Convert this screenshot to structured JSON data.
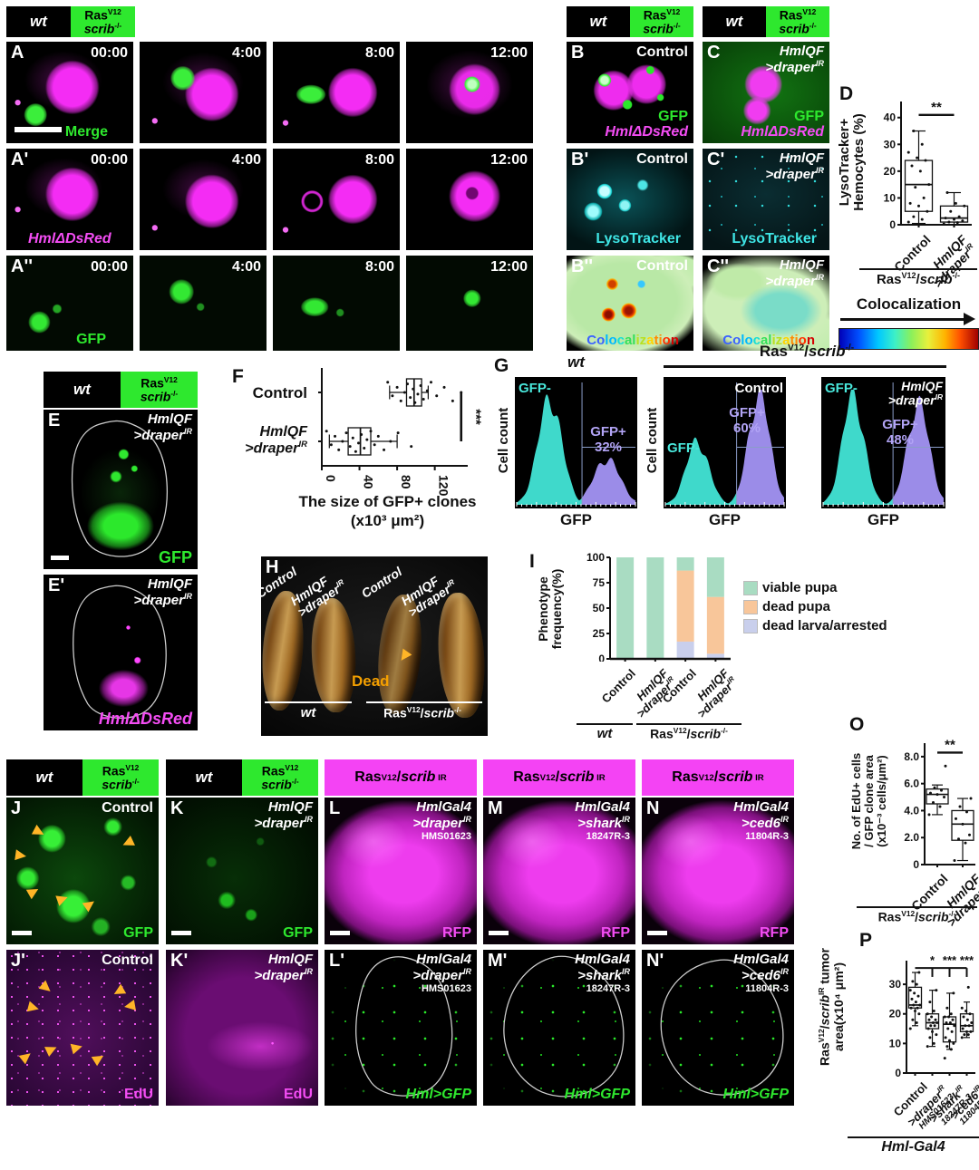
{
  "figure": {
    "timestamps": [
      "00:00",
      "4:00",
      "8:00",
      "12:00"
    ],
    "panel_letters": {
      "a": "A",
      "a1": "A'",
      "a2": "A''",
      "b": "B",
      "b1": "B'",
      "b2": "B''",
      "c": "C",
      "c1": "C'",
      "c2": "C''",
      "d": "D",
      "e": "E",
      "e1": "E'",
      "f": "F",
      "g": "G",
      "h": "H",
      "i": "I",
      "j": "J",
      "j1": "J'",
      "k": "K",
      "k1": "K'",
      "l": "L",
      "l1": "L'",
      "m": "M",
      "m1": "M'",
      "n": "N",
      "n1": "N'",
      "o": "O",
      "p": "P"
    },
    "labels": {
      "control": "Control",
      "wt": "wt",
      "dead": "Dead",
      "merge": "Merge",
      "gfp": "GFP",
      "rfp": "RFP",
      "edu": "EdU",
      "dsred": "HmlΔDsRed",
      "lysotracker": "LysoTracker",
      "coloc": "Colocalization",
      "hml_gfp": "Hml>GFP",
      "tumor_suffix": "tumor",
      "hml_gal4": "Hml-Gal4"
    },
    "genotype_header": {
      "wt": "wt",
      "ras": "Ras",
      "ras_sup": "V12",
      "scrib": "scrib",
      "scrib_sup": "-/-"
    },
    "ras_scrib_ko": {
      "ras": "Ras",
      "ras_sup": "V12",
      "sep": "/",
      "scrib": "scrib",
      "scrib_sup": "-/-"
    },
    "ras_scrib_ir": {
      "ras": "Ras",
      "ras_sup": "V12",
      "sep": "/",
      "scrib": "scrib",
      "scrib_sup": "IR"
    },
    "hmlqf": {
      "l1": "HmlQF",
      "l2": ">draper",
      "sup": "IR"
    },
    "hmlgal4_draper": {
      "l1": "HmlGal4",
      "l2": ">draper",
      "sup": "IR",
      "code": "HMS01623"
    },
    "hmlgal4_shark": {
      "l1": "HmlGal4",
      "l2": ">shark",
      "sup": "IR",
      "code": "18247R-3"
    },
    "hmlgal4_ced6": {
      "l1": "HmlGal4",
      "l2": ">ced6",
      "sup": "IR",
      "code": "11804R-3"
    }
  },
  "chart_data": [
    {
      "id": "D",
      "type": "box",
      "orientation": "vertical",
      "ylabel": "LysoTracker+ Hemocytes (%)",
      "ylabel_lines": [
        "LysoTracker+",
        "Hemocytes (%)"
      ],
      "ylim": [
        0,
        46
      ],
      "yticks": [
        0,
        10,
        20,
        30,
        40
      ],
      "categories": [
        "Control",
        "HmlQF >draper IR"
      ],
      "group_label": "RasV12/scrib-/-",
      "m": {
        "l": 34,
        "r": 6,
        "t": 12,
        "b": 4
      },
      "bw": 30,
      "boxes": [
        {
          "lo": 0.5,
          "q1": 5,
          "med": 15,
          "q3": 24,
          "hi": 35
        },
        {
          "lo": 0,
          "q1": 1,
          "med": 2.5,
          "q3": 7,
          "hi": 12
        }
      ],
      "points": [
        [
          1,
          2,
          3,
          5,
          7,
          8,
          10,
          14,
          15,
          20,
          22,
          24,
          25,
          27,
          30,
          35
        ],
        [
          0.3,
          0.8,
          1,
          1.5,
          2,
          2.5,
          3,
          5,
          7,
          8,
          12
        ]
      ],
      "sig": {
        "label": "**",
        "a": 0,
        "b": 1,
        "y": 41
      }
    },
    {
      "id": "F",
      "type": "box",
      "orientation": "horizontal",
      "xlabel": "The size of GFP+ clones (x10³ μm²)",
      "xlabel_lines": [
        "The size of GFP+ clones",
        "(x10³ μm²)"
      ],
      "xlim": [
        0,
        155
      ],
      "xticks": [
        0,
        40,
        80,
        120
      ],
      "categories": [
        "Control",
        "HmlQF >draper IR"
      ],
      "m": {
        "l": 10,
        "r": 34,
        "t": 8,
        "b": 52
      },
      "bw": 30,
      "boxes": [
        {
          "lo": 72,
          "q1": 90,
          "med": 98,
          "q3": 106,
          "hi": 113
        },
        {
          "lo": 8,
          "q1": 28,
          "med": 41,
          "q3": 52,
          "hi": 80
        }
      ],
      "points": [
        [
          70,
          75,
          80,
          84,
          88,
          91,
          94,
          97,
          99,
          102,
          105,
          108,
          112,
          116,
          122,
          130,
          139,
          148
        ],
        [
          5,
          10,
          14,
          18,
          22,
          26,
          30,
          33,
          36,
          39,
          42,
          45,
          48,
          52,
          56,
          60,
          66,
          73,
          81,
          95
        ]
      ],
      "sig": {
        "label": "***",
        "x": 148
      }
    },
    {
      "id": "G",
      "type": "histogram",
      "xlabel": "GFP",
      "ylabel": "Cell count",
      "group_title": "RasV12/scrib-/-",
      "colors": {
        "neg": "#3fd9cb",
        "pos": "#9b8ce8"
      },
      "plots": [
        {
          "svg": "G0",
          "title": "wt",
          "neg_label": "GFP-",
          "pos_label": "GFP+",
          "pos_pct": "32%",
          "neg_peak": {
            "c": 0.28,
            "s": 0.1,
            "h": 0.92
          },
          "pos_peak": {
            "c": 0.76,
            "s": 0.11,
            "h": 0.4
          },
          "divider": 0.55,
          "gate": 0.5
        },
        {
          "svg": "G1",
          "title": "Control",
          "neg_label": "GFP-",
          "pos_label": "GFP+",
          "pos_pct": "60%",
          "neg_peak": {
            "c": 0.27,
            "s": 0.095,
            "h": 0.55
          },
          "pos_peak": {
            "c": 0.79,
            "s": 0.09,
            "h": 0.96
          },
          "divider": 0.6,
          "gate": 0.5
        },
        {
          "svg": "G2",
          "title": "HmlQF >draper IR",
          "neg_label": "GFP-",
          "pos_label": "GFP+",
          "pos_pct": "48%",
          "neg_peak": {
            "c": 0.25,
            "s": 0.09,
            "h": 0.95
          },
          "pos_peak": {
            "c": 0.79,
            "s": 0.09,
            "h": 0.88
          },
          "divider": 0.58,
          "gate": 0.5
        }
      ]
    },
    {
      "id": "I",
      "type": "bar",
      "stacked": true,
      "ylabel": "Phenotype frequency(%)",
      "ylabel_lines": [
        "Phenotype",
        "frequency(%)"
      ],
      "ylim": [
        0,
        100
      ],
      "yticks": [
        0,
        25,
        50,
        75,
        100
      ],
      "categories": [
        "Control",
        "HmlQF >draper IR",
        "Control",
        "HmlQF >draper IR"
      ],
      "groups": [
        {
          "label": "wt",
          "span": [
            0,
            1
          ]
        },
        {
          "label": "RasV12/scrib-/-",
          "span": [
            2,
            3
          ]
        }
      ],
      "m": {
        "l": 30,
        "r": 4,
        "t": 5,
        "b": 3
      },
      "bw": 19,
      "series": [
        {
          "name": "viable pupa",
          "color": "#a9dcc2",
          "values": [
            100,
            100,
            13,
            39
          ]
        },
        {
          "name": "dead pupa",
          "color": "#f8c69a",
          "values": [
            0,
            0,
            70,
            56
          ]
        },
        {
          "name": "dead larva/arrested",
          "color": "#c9cfec",
          "values": [
            0,
            0,
            17,
            5
          ]
        }
      ],
      "legend_position": "right"
    },
    {
      "id": "O",
      "type": "box",
      "orientation": "vertical",
      "ylabel": "No. of EdU+ cells / GFP clone area (x10⁻³ cells/μm²)",
      "ylabel_lines": [
        "No. of EdU+ cells",
        "/ GFP clone area",
        "(x10⁻³ cells/μm²)"
      ],
      "ylim": [
        0,
        9
      ],
      "yticks": [
        0,
        2,
        4,
        6,
        8
      ],
      "ytick_labels": [
        "0",
        "2.0",
        "4.0",
        "6.0",
        "8.0"
      ],
      "categories": [
        "Control",
        "HmlQF >draper IR"
      ],
      "group_label": "RasV12/scrib-/-",
      "m": {
        "l": 34,
        "r": 4,
        "t": 14,
        "b": 4
      },
      "bw": 24,
      "boxes": [
        {
          "lo": 3.7,
          "q1": 4.5,
          "med": 5.2,
          "q3": 5.6,
          "hi": 5.9
        },
        {
          "lo": 0.3,
          "q1": 1.8,
          "med": 3.0,
          "q3": 4.0,
          "hi": 4.9
        }
      ],
      "points": [
        [
          3.7,
          4.3,
          4.6,
          5.0,
          5.2,
          5.3,
          5.5,
          5.7,
          7.3
        ],
        [
          0.3,
          1.6,
          1.9,
          2.2,
          3.0,
          3.4,
          3.9,
          4.3,
          4.9
        ]
      ],
      "sig": {
        "label": "**",
        "a": 0,
        "b": 1,
        "y": 8.3
      }
    },
    {
      "id": "P",
      "type": "box",
      "orientation": "vertical",
      "ylabel": "RasV12/scribIR tumor area(x10⁴ μm²)",
      "ylabel_line2": "area(x10⁴ μm²)",
      "ylim": [
        0,
        38
      ],
      "yticks": [
        0,
        10,
        20,
        30
      ],
      "categories": [
        "Control",
        ">draper IR HMS01623",
        ">shark IR 18247R-3",
        ">ced6 IR 11804R-3"
      ],
      "group_label": "Hml-Gal4",
      "m": {
        "l": 28,
        "r": 4,
        "t": 22,
        "b": 4
      },
      "bw": 14,
      "boxes": [
        {
          "lo": 16,
          "q1": 22,
          "med": 23,
          "q3": 29,
          "hi": 34
        },
        {
          "lo": 9,
          "q1": 15,
          "med": 17,
          "q3": 20,
          "hi": 28
        },
        {
          "lo": 8,
          "q1": 10.5,
          "med": 16.5,
          "q3": 19,
          "hi": 27
        },
        {
          "lo": 12,
          "q1": 14,
          "med": 16,
          "q3": 20,
          "hi": 24
        }
      ],
      "points": [
        [
          15,
          17,
          18,
          20,
          21,
          22,
          22,
          23,
          23,
          24,
          25,
          26,
          27,
          28,
          30,
          31,
          34
        ],
        [
          9,
          10,
          12,
          13,
          14,
          15,
          16,
          16,
          17,
          17,
          18,
          18,
          19,
          20,
          21,
          24,
          28
        ],
        [
          5,
          8,
          9,
          10,
          11,
          12,
          14,
          15,
          16,
          17,
          17,
          18,
          19,
          19,
          20,
          22,
          27
        ],
        [
          12,
          13,
          13,
          14,
          14,
          15,
          16,
          16,
          17,
          18,
          19,
          20,
          21,
          22,
          29
        ]
      ],
      "sig": {
        "bracket": true,
        "y": 35.5,
        "drop": 3,
        "items": [
          {
            "cat": 1,
            "label": "*"
          },
          {
            "cat": 2,
            "label": "***"
          },
          {
            "cat": 3,
            "label": "***"
          }
        ]
      }
    }
  ]
}
